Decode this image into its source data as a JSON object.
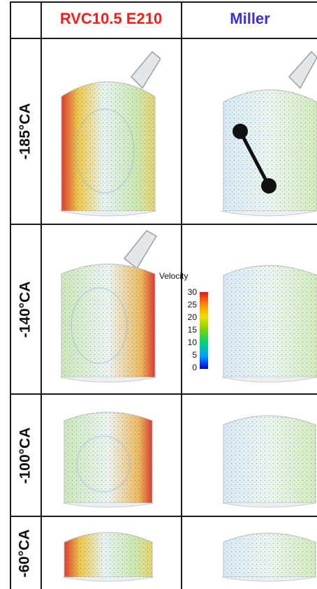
{
  "columns": {
    "rvc": {
      "label": "RVC10.5 E210",
      "color": "#ff1a1a"
    },
    "miller": {
      "label": "Miller",
      "color": "#3a2ee0"
    }
  },
  "rows": [
    {
      "label": "-185°CA"
    },
    {
      "label": "-140°CA"
    },
    {
      "label": "-100°CA"
    },
    {
      "label": "-60°CA"
    }
  ],
  "legend": {
    "title": "Velocity",
    "ticks": [
      "30",
      "25",
      "20",
      "15",
      "10",
      "5",
      "0"
    ]
  },
  "icons": [
    "valve-icon",
    "piston-crank-icon"
  ]
}
